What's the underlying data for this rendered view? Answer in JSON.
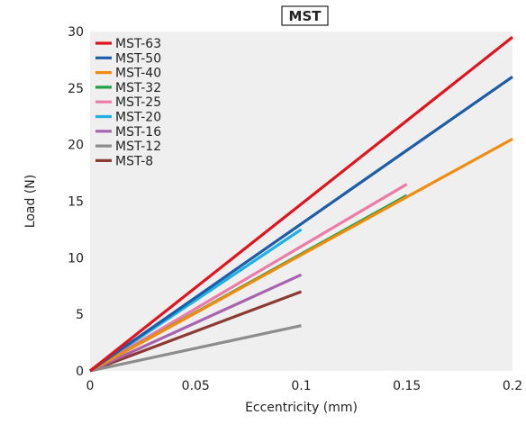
{
  "chart_data": {
    "type": "line",
    "title": "MST",
    "xlabel": "Eccentricity (mm)",
    "ylabel": "Load (N)",
    "xlim": [
      0,
      0.2
    ],
    "ylim": [
      0,
      30
    ],
    "xticks": [
      0,
      0.05,
      0.1,
      0.15,
      0.2
    ],
    "xtick_labels": [
      "0",
      "0.05",
      "0.1",
      "0.15",
      "0.2"
    ],
    "yticks": [
      0,
      5,
      10,
      15,
      20,
      25,
      30
    ],
    "ytick_labels": [
      "0",
      "5",
      "10",
      "15",
      "20",
      "25",
      "30"
    ],
    "grid": false,
    "background": "#efefef",
    "legend_position": "top-left",
    "series": [
      {
        "name": "MST-63",
        "color": "#e0141e",
        "x": [
          0,
          0.2
        ],
        "y": [
          0,
          29.5
        ]
      },
      {
        "name": "MST-50",
        "color": "#1d5ca8",
        "x": [
          0,
          0.2
        ],
        "y": [
          0,
          26.0
        ]
      },
      {
        "name": "MST-40",
        "color": "#f08c10",
        "x": [
          0,
          0.2
        ],
        "y": [
          0,
          20.5
        ]
      },
      {
        "name": "MST-32",
        "color": "#23a04a",
        "x": [
          0,
          0.15
        ],
        "y": [
          0,
          15.5
        ]
      },
      {
        "name": "MST-25",
        "color": "#ee7aa8",
        "x": [
          0,
          0.15
        ],
        "y": [
          0,
          16.5
        ]
      },
      {
        "name": "MST-20",
        "color": "#1fb0e6",
        "x": [
          0,
          0.1
        ],
        "y": [
          0,
          12.5
        ]
      },
      {
        "name": "MST-16",
        "color": "#a862b0",
        "x": [
          0,
          0.1
        ],
        "y": [
          0,
          8.5
        ]
      },
      {
        "name": "MST-12",
        "color": "#8c8c8c",
        "x": [
          0,
          0.1
        ],
        "y": [
          0,
          4.0
        ]
      },
      {
        "name": "MST-8",
        "color": "#8c3a32",
        "x": [
          0,
          0.1
        ],
        "y": [
          0,
          7.0
        ]
      }
    ]
  }
}
